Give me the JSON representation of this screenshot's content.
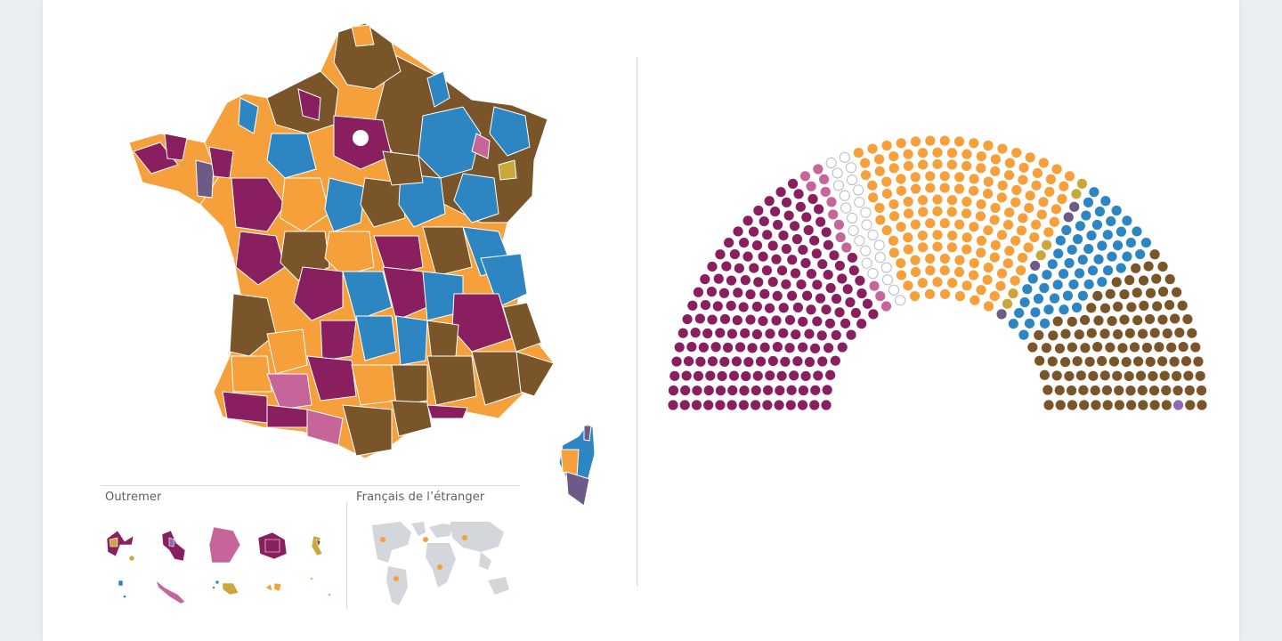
{
  "labels": {
    "outremer": "Outremer",
    "etranger": "Français de l’étranger"
  },
  "colors": {
    "purple": "#8a1f5f",
    "pink": "#c5659a",
    "white_seat": "#ffffff",
    "orange": "#f5a03a",
    "gold": "#c9a73a",
    "mauve": "#6e5a86",
    "blue": "#2d86c2",
    "brown": "#7a5529",
    "lilac": "#8d6bb0",
    "grey_world": "#d3d6da"
  },
  "hemicycle": {
    "rows": 14,
    "blocks": [
      {
        "color": "purple",
        "seats": 193
      },
      {
        "color": "pink",
        "seats": 13
      },
      {
        "color": "white_seat",
        "seats": 25
      },
      {
        "color": "orange",
        "seats": 160
      },
      {
        "color": "gold",
        "seats": 6
      },
      {
        "color": "mauve",
        "seats": 4
      },
      {
        "color": "blue",
        "seats": 58
      },
      {
        "color": "brown",
        "seats": 117
      },
      {
        "color": "lilac",
        "seats": 1
      }
    ]
  }
}
